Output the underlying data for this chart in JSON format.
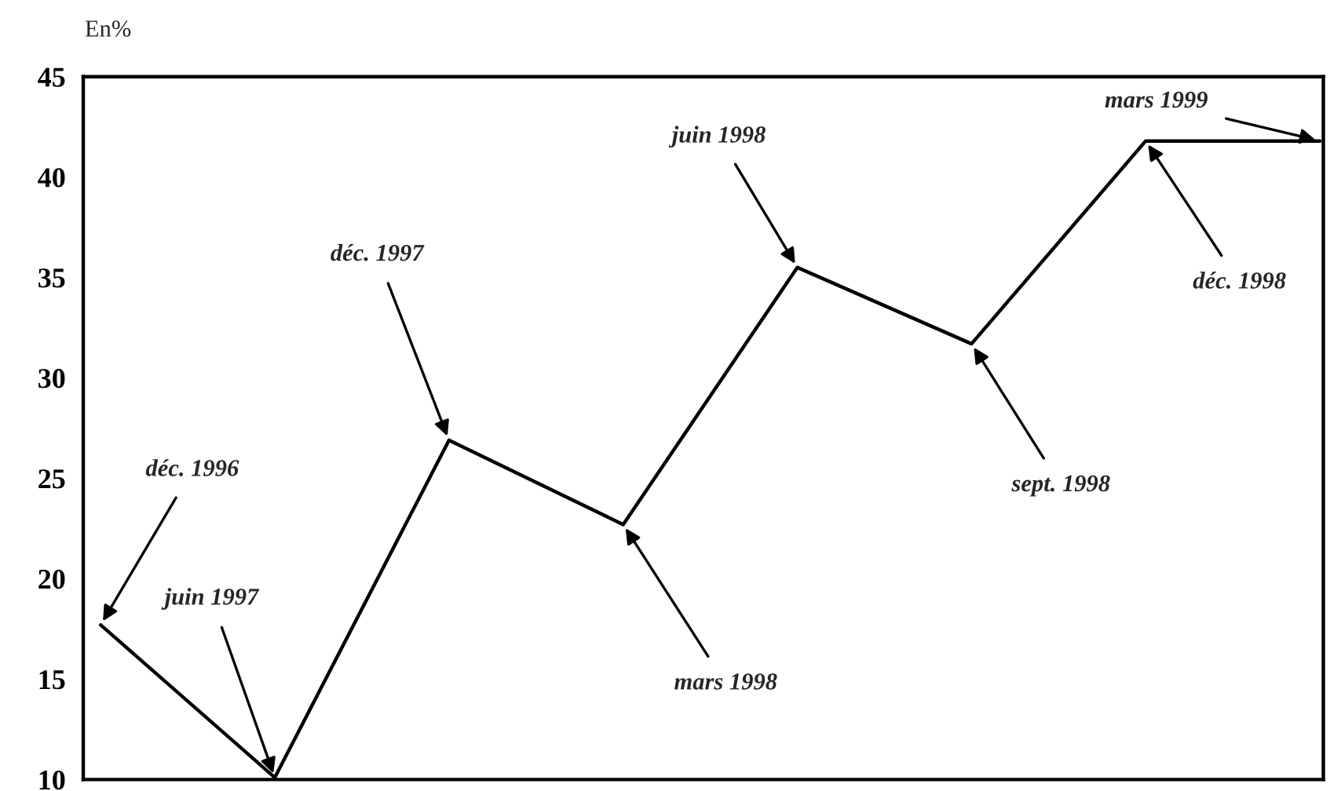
{
  "chart_data": {
    "type": "line",
    "ylabel": "En%",
    "categories": [
      null,
      null,
      null,
      null,
      null,
      null,
      null,
      null
    ],
    "series": [
      {
        "color": "#000000",
        "values": [
          17.7,
          10.1,
          26.9,
          22.7,
          35.5,
          31.7,
          41.8,
          41.8
        ]
      }
    ],
    "ylim": [
      10,
      45
    ],
    "yticks": [
      10,
      15,
      20,
      25,
      30,
      35,
      40,
      45
    ],
    "grid": false,
    "legend": false,
    "marker": "none",
    "line_style": "solid",
    "annotations": [
      "déc. 1996",
      "juin 1997",
      "déc. 1997",
      "mars 1998",
      "juin 1998",
      "sept. 1998",
      "déc. 1998",
      "mars 1999"
    ]
  }
}
